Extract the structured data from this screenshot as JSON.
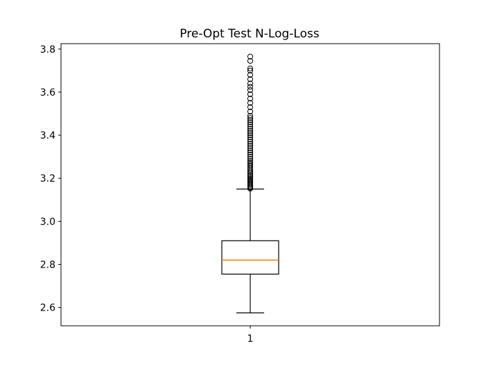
{
  "chart_data": {
    "type": "box",
    "title": "Pre-Opt Test N-Log-Loss",
    "xlabel": "",
    "ylabel": "",
    "categories": [
      "1"
    ],
    "ylim": [
      2.515,
      3.825
    ],
    "yticks": [
      2.6,
      2.8,
      3.0,
      3.2,
      3.4,
      3.6,
      3.8
    ],
    "ytick_labels": [
      "2.6",
      "2.8",
      "3.0",
      "3.2",
      "3.4",
      "3.6",
      "3.8"
    ],
    "grid": false,
    "box": {
      "whisker_low": 2.575,
      "q1": 2.755,
      "median": 2.82,
      "q3": 2.91,
      "whisker_high": 3.15
    },
    "outliers": [
      3.152,
      3.157,
      3.162,
      3.168,
      3.174,
      3.18,
      3.186,
      3.192,
      3.198,
      3.205,
      3.212,
      3.218,
      3.225,
      3.232,
      3.24,
      3.248,
      3.256,
      3.264,
      3.272,
      3.28,
      3.29,
      3.3,
      3.31,
      3.32,
      3.33,
      3.34,
      3.35,
      3.36,
      3.37,
      3.38,
      3.39,
      3.4,
      3.41,
      3.42,
      3.43,
      3.44,
      3.45,
      3.46,
      3.47,
      3.48,
      3.49,
      3.51,
      3.53,
      3.55,
      3.57,
      3.59,
      3.61,
      3.625,
      3.64,
      3.66,
      3.68,
      3.7,
      3.71,
      3.745,
      3.765
    ],
    "colors": {
      "median": "#ff7f0e",
      "box": "#000000"
    }
  }
}
